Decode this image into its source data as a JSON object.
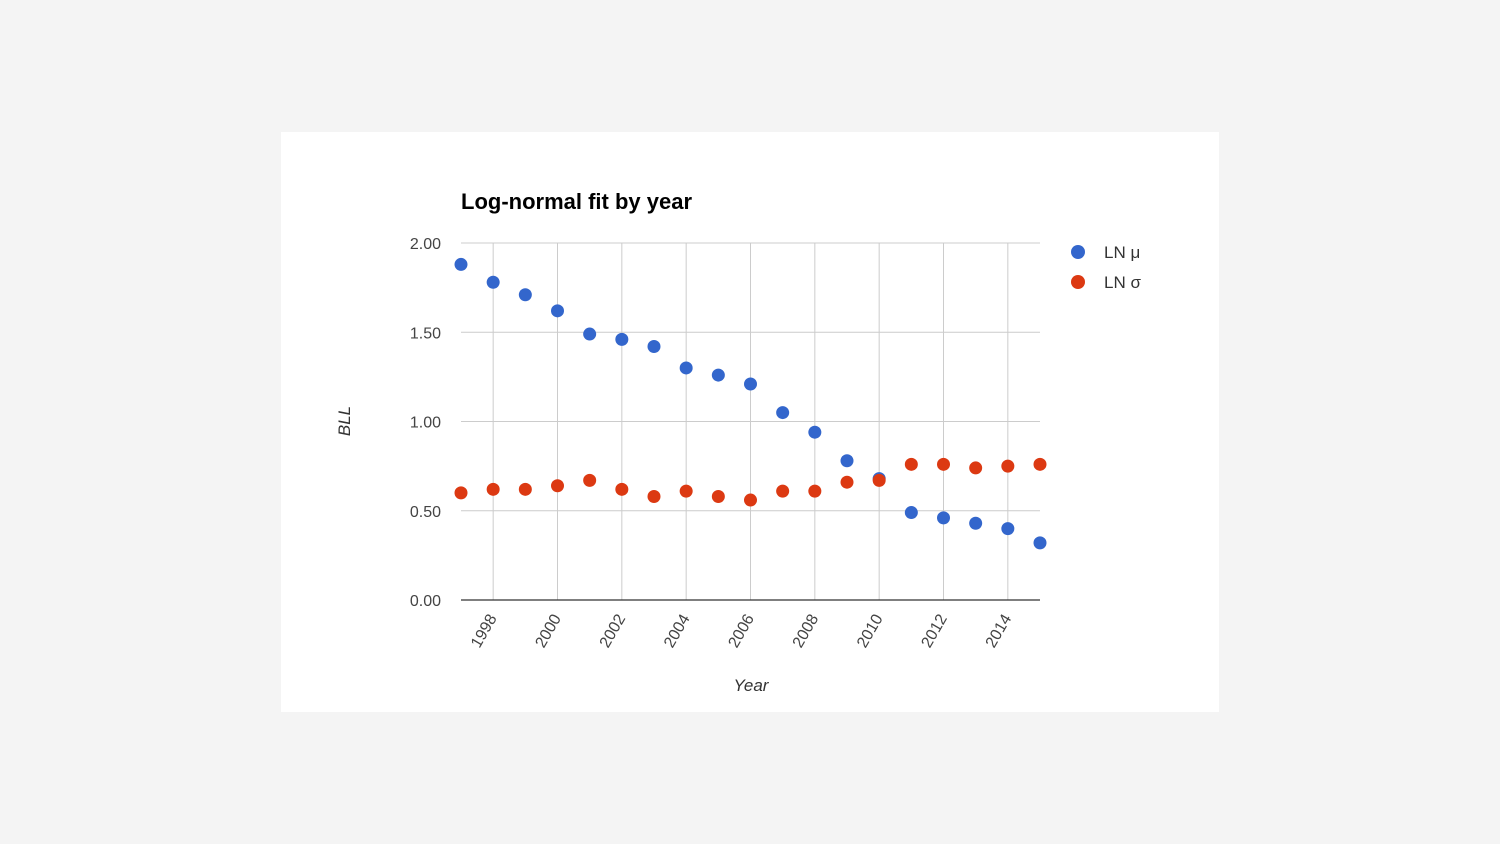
{
  "chart_data": {
    "type": "scatter",
    "title": "Log-normal fit by year",
    "xlabel": "Year",
    "ylabel": "BLL",
    "xlim": [
      1997,
      2015
    ],
    "ylim": [
      0,
      2
    ],
    "y_ticks": [
      "0.00",
      "0.50",
      "1.00",
      "1.50",
      "2.00"
    ],
    "x_ticks": [
      1998,
      2000,
      2002,
      2004,
      2006,
      2008,
      2010,
      2012,
      2014
    ],
    "grid": true,
    "legend_position": "right",
    "x": [
      1997,
      1998,
      1999,
      2000,
      2001,
      2002,
      2003,
      2004,
      2005,
      2006,
      2007,
      2008,
      2009,
      2010,
      2011,
      2012,
      2013,
      2014,
      2015
    ],
    "series": [
      {
        "name": "LN μ",
        "color": "#3366cc",
        "values": [
          1.88,
          1.78,
          1.71,
          1.62,
          1.49,
          1.46,
          1.42,
          1.3,
          1.26,
          1.21,
          1.05,
          0.94,
          0.78,
          0.68,
          0.49,
          0.46,
          0.43,
          0.4,
          0.32
        ]
      },
      {
        "name": "LN σ",
        "color": "#dc3912",
        "values": [
          0.6,
          0.62,
          0.62,
          0.64,
          0.67,
          0.62,
          0.58,
          0.61,
          0.58,
          0.56,
          0.61,
          0.61,
          0.66,
          0.67,
          0.76,
          0.76,
          0.74,
          0.75,
          0.76
        ]
      }
    ]
  }
}
